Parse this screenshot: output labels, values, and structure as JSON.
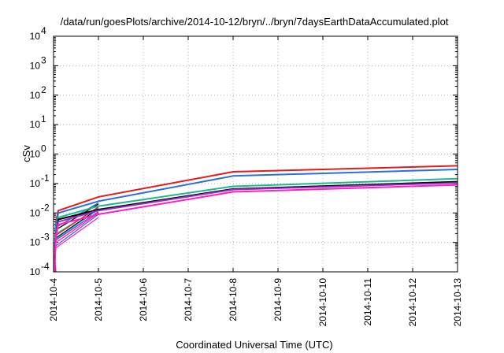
{
  "chart_data": {
    "type": "line",
    "title": "/data/run/goesPlots/archive/2014-10-12/bryn/../bryn/7daysEarthDataAccumulated.plot",
    "xlabel": "Coordinated Universal Time (UTC)",
    "ylabel": "cSv",
    "x_ticks": [
      "2014-10-4",
      "2014-10-5",
      "2014-10-6",
      "2014-10-7",
      "2014-10-8",
      "2014-10-9",
      "2014-10-10",
      "2014-10-11",
      "2014-10-12",
      "2014-10-13"
    ],
    "y_ticks": [
      {
        "mantissa": "10",
        "exp": "-4"
      },
      {
        "mantissa": "10",
        "exp": "-3"
      },
      {
        "mantissa": "10",
        "exp": "-2"
      },
      {
        "mantissa": "10",
        "exp": "-1"
      },
      {
        "mantissa": "10",
        "exp": "0"
      },
      {
        "mantissa": "10",
        "exp": "1"
      },
      {
        "mantissa": "10",
        "exp": "2"
      },
      {
        "mantissa": "10",
        "exp": "3"
      },
      {
        "mantissa": "10",
        "exp": "4"
      }
    ],
    "xlim": [
      "2014-10-4",
      "2014-10-13"
    ],
    "ylim": [
      0.0001,
      10000
    ],
    "yscale": "log",
    "grid": true,
    "series": [
      {
        "color": "#e41a1c",
        "points": [
          {
            "x": "2014-10-4",
            "y": 0.0001
          },
          {
            "x": "2014-10-4",
            "y": 0.005
          },
          {
            "x": "2014-10-4",
            "y": 0.012
          },
          {
            "x": "2014-10-5",
            "y": 0.035
          },
          {
            "x": "2014-10-8",
            "y": 0.25
          },
          {
            "x": "2014-10-13",
            "y": 0.4
          }
        ]
      },
      {
        "color": "#2a6fdb",
        "points": [
          {
            "x": "2014-10-4",
            "y": 0.0001
          },
          {
            "x": "2014-10-4",
            "y": 0.004
          },
          {
            "x": "2014-10-4",
            "y": 0.01
          },
          {
            "x": "2014-10-5",
            "y": 0.025
          },
          {
            "x": "2014-10-8",
            "y": 0.18
          },
          {
            "x": "2014-10-13",
            "y": 0.3
          }
        ]
      },
      {
        "color": "#1fb88c",
        "points": [
          {
            "x": "2014-10-4",
            "y": 0.0001
          },
          {
            "x": "2014-10-4",
            "y": 0.003
          },
          {
            "x": "2014-10-4",
            "y": 0.007
          },
          {
            "x": "2014-10-5",
            "y": 0.017
          },
          {
            "x": "2014-10-8",
            "y": 0.08
          },
          {
            "x": "2014-10-13",
            "y": 0.145
          }
        ]
      },
      {
        "color": "#000000",
        "points": [
          {
            "x": "2014-10-4",
            "y": 0.0001
          },
          {
            "x": "2014-10-4",
            "y": 0.002
          },
          {
            "x": "2014-10-4",
            "y": 0.006
          },
          {
            "x": "2014-10-5",
            "y": 0.013
          },
          {
            "x": "2014-10-8",
            "y": 0.065
          },
          {
            "x": "2014-10-13",
            "y": 0.115
          }
        ]
      },
      {
        "color": "#9b30c8",
        "points": [
          {
            "x": "2014-10-4",
            "y": 0.0001
          },
          {
            "x": "2014-10-4",
            "y": 0.002
          },
          {
            "x": "2014-10-4",
            "y": 0.005
          },
          {
            "x": "2014-10-5",
            "y": 0.012
          },
          {
            "x": "2014-10-8",
            "y": 0.062
          },
          {
            "x": "2014-10-13",
            "y": 0.105
          }
        ]
      },
      {
        "color": "#ff1fbf",
        "points": [
          {
            "x": "2014-10-4",
            "y": 0.0001
          },
          {
            "x": "2014-10-4",
            "y": 0.0015
          },
          {
            "x": "2014-10-4",
            "y": 0.004
          },
          {
            "x": "2014-10-5",
            "y": 0.009
          },
          {
            "x": "2014-10-8",
            "y": 0.052
          },
          {
            "x": "2014-10-13",
            "y": 0.09
          }
        ]
      }
    ],
    "fragments": [
      {
        "color": "#000000",
        "points": [
          {
            "x": "2014-10-4",
            "y": 0.0025
          },
          {
            "x": "2014-10-5",
            "y": 0.02
          }
        ]
      },
      {
        "color": "#000000",
        "points": [
          {
            "x": "2014-10-4",
            "y": 0.0013
          },
          {
            "x": "2014-10-5",
            "y": 0.014
          }
        ]
      },
      {
        "color": "#2a6fdb",
        "points": [
          {
            "x": "2014-10-4",
            "y": 0.003
          },
          {
            "x": "2014-10-5",
            "y": 0.022
          }
        ]
      },
      {
        "color": "#2a6fdb",
        "points": [
          {
            "x": "2014-10-4",
            "y": 0.0007
          },
          {
            "x": "2014-10-5",
            "y": 0.009
          }
        ]
      },
      {
        "color": "#1fb88c",
        "points": [
          {
            "x": "2014-10-4",
            "y": 0.0018
          },
          {
            "x": "2014-10-5",
            "y": 0.015
          }
        ]
      },
      {
        "color": "#9b30c8",
        "points": [
          {
            "x": "2014-10-4",
            "y": 0.0011
          },
          {
            "x": "2014-10-5",
            "y": 0.011
          }
        ]
      },
      {
        "color": "#ff1fbf",
        "points": [
          {
            "x": "2014-10-4",
            "y": 0.0006
          },
          {
            "x": "2014-10-5",
            "y": 0.007
          }
        ]
      },
      {
        "color": "#ff1fbf",
        "points": [
          {
            "x": "2014-10-4",
            "y": 0.0009
          },
          {
            "x": "2014-10-5",
            "y": 0.01
          }
        ]
      },
      {
        "color": "#e41a1c",
        "points": [
          {
            "x": "2014-10-4",
            "y": 0.0016
          },
          {
            "x": "2014-10-5",
            "y": 0.016
          }
        ]
      },
      {
        "color": "#00bcd4",
        "points": [
          {
            "x": "2014-10-4",
            "y": 0.0012
          },
          {
            "x": "2014-10-5",
            "y": 0.013
          }
        ]
      },
      {
        "color": "#e41a1c",
        "points": [
          {
            "x": "2014-10-4",
            "y": 0.0002
          },
          {
            "x": "2014-10-4",
            "y": 0.0001
          }
        ]
      },
      {
        "color": "#9b30c8",
        "points": [
          {
            "x": "2014-10-4",
            "y": 0.0003
          },
          {
            "x": "2014-10-4",
            "y": 0.0001
          }
        ]
      },
      {
        "color": "#ff1fbf",
        "points": [
          {
            "x": "2014-10-4",
            "y": 0.0004
          },
          {
            "x": "2014-10-4",
            "y": 0.0001
          }
        ]
      }
    ]
  }
}
